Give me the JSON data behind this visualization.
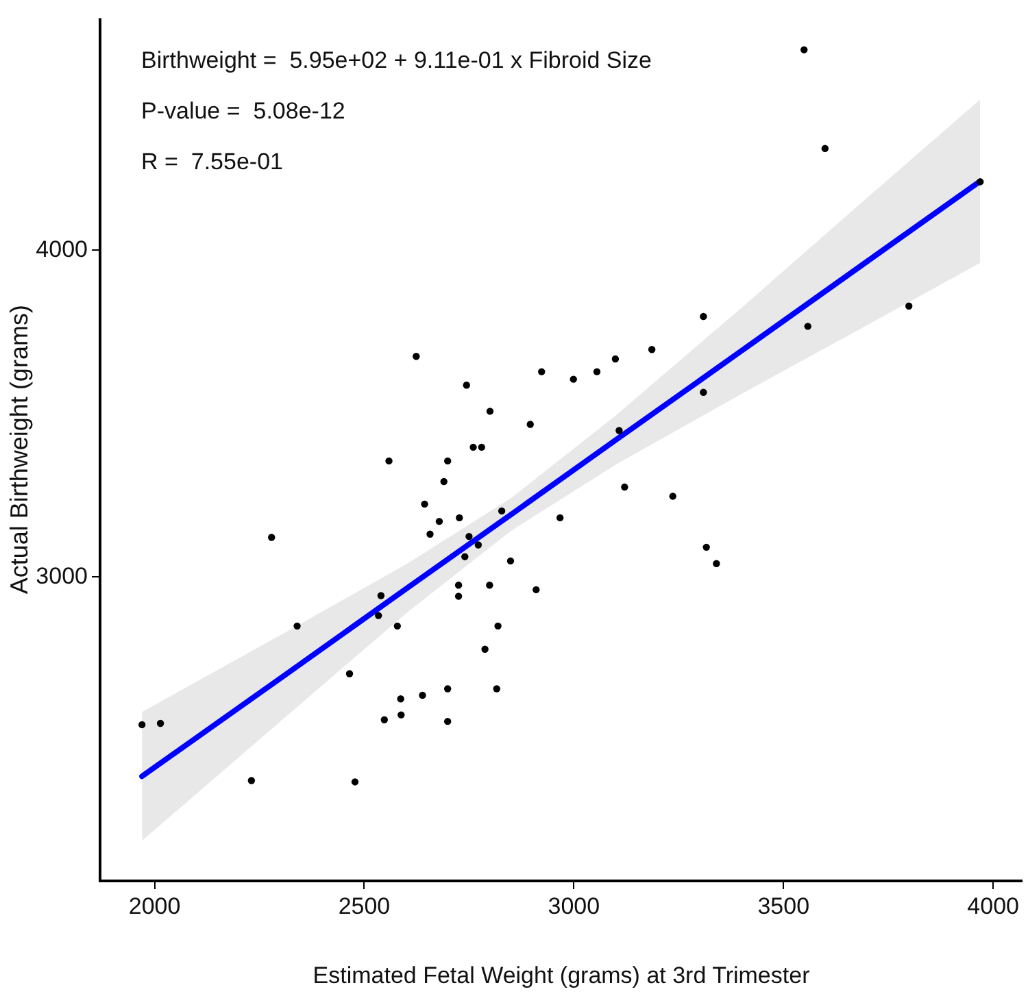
{
  "chart_data": {
    "type": "scatter",
    "xlabel": "Estimated Fetal Weight (grams) at 3rd Trimester",
    "ylabel": "Actual Birthweight (grams)",
    "annotations": [
      "Birthweight =  5.95e+02 + 9.11e-01 x Fibroid Size",
      "P-value =  5.08e-12",
      "R =  7.55e-01"
    ],
    "xlim": [
      1870,
      4070
    ],
    "xticks": [
      2000,
      2500,
      3000,
      3500,
      4000
    ],
    "ylim": [
      2070,
      4710
    ],
    "yticks": [
      3000,
      4000
    ],
    "grid": false,
    "legend": false,
    "marker": "circle",
    "series": [
      {
        "color": "#000000",
        "x": [
          2624,
          2923,
          2744,
          2800,
          2896,
          2760,
          2780,
          2559,
          2699,
          2690,
          3549,
          3599,
          3969,
          3799,
          3558,
          3309,
          3186,
          3099,
          3055,
          2999,
          3309,
          3108,
          3121,
          3236,
          2644,
          2679,
          2727,
          2657,
          2828,
          2967,
          2750,
          2772,
          2740,
          2849,
          2725,
          2725,
          2799,
          2910,
          2540,
          2534,
          2579,
          2819,
          2340,
          2279,
          2788,
          2465,
          2699,
          2816,
          2639,
          2587,
          2588,
          2548,
          2699,
          1970,
          2014,
          2231,
          2478,
          3316,
          3340
        ],
        "values": [
          3675,
          3628,
          3587,
          3507,
          3467,
          3397,
          3397,
          3355,
          3355,
          3292,
          4613,
          4311,
          4209,
          3829,
          3767,
          3797,
          3696,
          3667,
          3628,
          3605,
          3565,
          3448,
          3275,
          3247,
          3223,
          3170,
          3181,
          3131,
          3202,
          3181,
          3124,
          3098,
          3062,
          3049,
          2975,
          2941,
          2975,
          2961,
          2943,
          2882,
          2850,
          2850,
          2850,
          3121,
          2779,
          2704,
          2658,
          2658,
          2638,
          2627,
          2578,
          2563,
          2558,
          2548,
          2552,
          2377,
          2373,
          3091,
          3041
        ]
      },
      {
        "type": "line",
        "color": "#0000ff",
        "marker": "none",
        "line_style": "solid",
        "x": [
          1970,
          2300,
          2600,
          2850,
          3100,
          3400,
          3700,
          3969
        ],
        "values": [
          2390,
          2690,
          2964,
          3191,
          3419,
          3692,
          3966,
          4211
        ],
        "lower": [
          2193,
          2558,
          2889,
          3141,
          3344,
          3560,
          3771,
          3961
        ],
        "upper": [
          2587,
          2822,
          3039,
          3241,
          3494,
          3824,
          4161,
          4461
        ]
      }
    ]
  }
}
